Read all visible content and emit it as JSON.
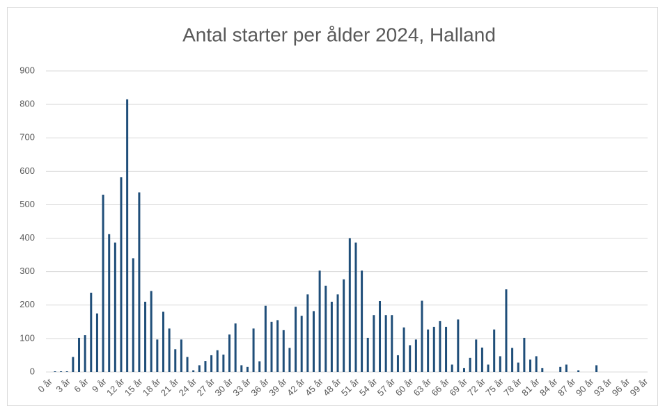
{
  "chart_data": {
    "type": "bar",
    "title": "Antal starter per ålder 2024, Halland",
    "categories": [
      "0 år",
      null,
      null,
      "3 år",
      null,
      null,
      "6 år",
      null,
      null,
      "9 år",
      null,
      null,
      "12 år",
      null,
      null,
      "15 år",
      null,
      null,
      "18 år",
      null,
      null,
      "21 år",
      null,
      null,
      "24 år",
      null,
      null,
      "27 år",
      null,
      null,
      "30 år",
      null,
      null,
      "33 år",
      null,
      null,
      "36 år",
      null,
      null,
      "39 år",
      null,
      null,
      "42 år",
      null,
      null,
      "45 år",
      null,
      null,
      "48 år",
      null,
      null,
      "51 år",
      null,
      null,
      "54 år",
      null,
      null,
      "57 år",
      null,
      null,
      "60 år",
      null,
      null,
      "63 år",
      null,
      null,
      "66 år",
      null,
      null,
      "69 år",
      null,
      null,
      "72 år",
      null,
      null,
      "75 år",
      null,
      null,
      "78 år",
      null,
      null,
      "81 år",
      null,
      null,
      "84 år",
      null,
      null,
      "87 år",
      null,
      null,
      "90 år",
      null,
      null,
      "93 år",
      null,
      null,
      "96 år",
      null,
      null,
      "99 år"
    ],
    "values": [
      0,
      2,
      2,
      2,
      45,
      102,
      110,
      237,
      175,
      530,
      412,
      387,
      582,
      815,
      340,
      537,
      210,
      242,
      97,
      180,
      130,
      68,
      97,
      45,
      5,
      20,
      33,
      50,
      65,
      52,
      112,
      145,
      20,
      15,
      130,
      32,
      198,
      150,
      155,
      125,
      72,
      195,
      168,
      232,
      182,
      303,
      258,
      210,
      232,
      277,
      400,
      387,
      303,
      102,
      170,
      212,
      170,
      170,
      50,
      133,
      80,
      97,
      213,
      127,
      135,
      152,
      135,
      22,
      157,
      12,
      42,
      97,
      73,
      22,
      127,
      47,
      247,
      72,
      28,
      102,
      37,
      47,
      12,
      0,
      0,
      15,
      22,
      0,
      5,
      0,
      0,
      20,
      0,
      0,
      0,
      0,
      0,
      0,
      0,
      0
    ],
    "color": "#1f4e79",
    "ylim": [
      0,
      900
    ],
    "yticks": [
      0,
      100,
      200,
      300,
      400,
      500,
      600,
      700,
      800,
      900
    ],
    "grid": true
  }
}
